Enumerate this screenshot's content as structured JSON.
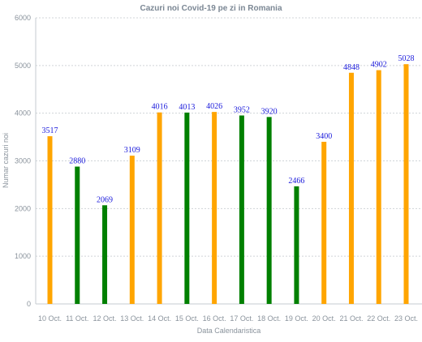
{
  "chart_data": {
    "type": "bar",
    "title": "Cazuri noi Covid-19 pe zi in Romania",
    "xlabel": "Data Calendaristica",
    "ylabel": "Numar cazuri noi",
    "ylim": [
      0,
      6000
    ],
    "yticks": [
      0,
      1000,
      2000,
      3000,
      4000,
      5000,
      6000
    ],
    "grid": true,
    "categories": [
      "10 Oct.",
      "11 Oct.",
      "12 Oct.",
      "13 Oct.",
      "14 Oct.",
      "15 Oct.",
      "16 Oct.",
      "17 Oct.",
      "18 Oct.",
      "19 Oct.",
      "20 Oct.",
      "21 Oct.",
      "22 Oct.",
      "23 Oct."
    ],
    "values": [
      3517,
      2880,
      2069,
      3109,
      4016,
      4013,
      4026,
      3952,
      3920,
      2466,
      3400,
      4848,
      4902,
      5028
    ],
    "bar_colors": [
      "#ffa500",
      "#008000",
      "#008000",
      "#ffa500",
      "#ffa500",
      "#008000",
      "#ffa500",
      "#008000",
      "#008000",
      "#008000",
      "#ffa500",
      "#ffa500",
      "#ffa500",
      "#ffa500"
    ],
    "data_label_color": "#1a1adb"
  }
}
